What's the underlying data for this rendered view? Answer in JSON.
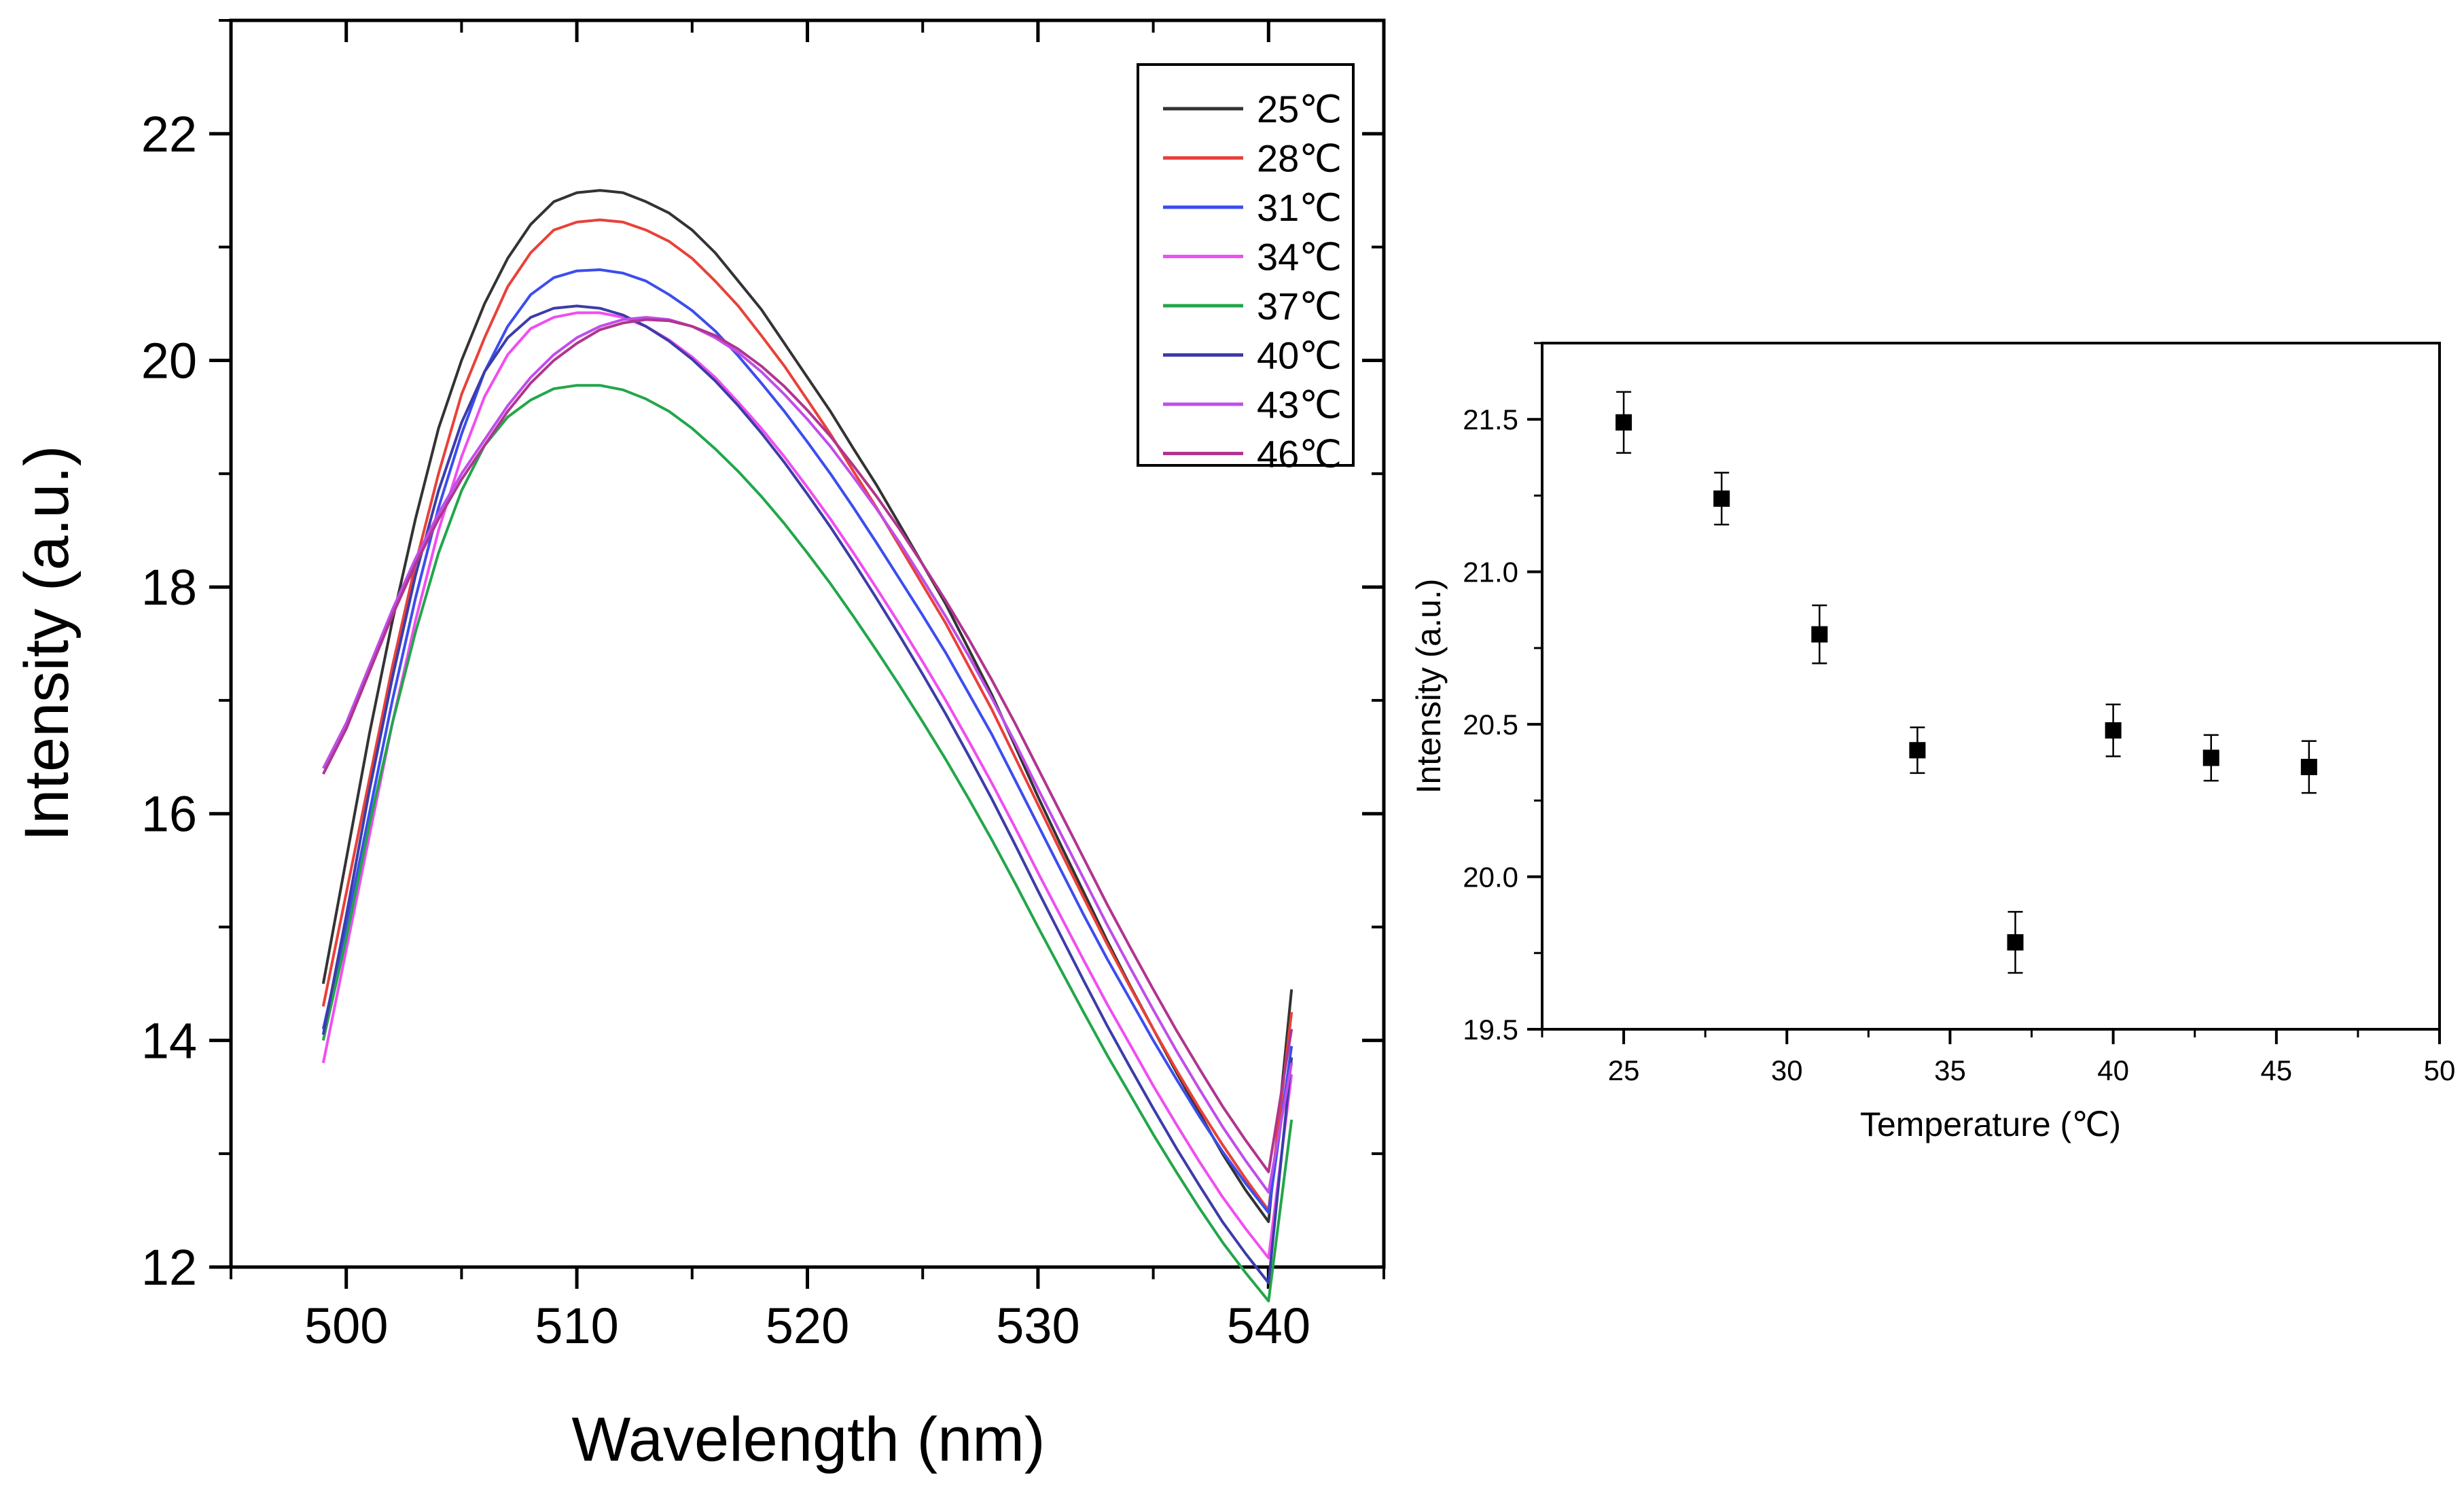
{
  "chart_data": [
    {
      "type": "line",
      "title": "",
      "xlabel": "Wavelength (nm)",
      "ylabel": "Intensity (a.u.)",
      "xlim": [
        495,
        545
      ],
      "ylim": [
        12,
        23
      ],
      "xticks": [
        500,
        510,
        520,
        530,
        540
      ],
      "yticks": [
        12,
        14,
        16,
        18,
        20,
        22
      ],
      "xtick_labels": [
        "500",
        "510",
        "520",
        "530",
        "540"
      ],
      "ytick_labels": [
        "12",
        "14",
        "16",
        "18",
        "20",
        "22"
      ],
      "grid": false,
      "legend_position": "top-right",
      "x": [
        499,
        500,
        501,
        502,
        503,
        504,
        505,
        506,
        507,
        508,
        509,
        510,
        511,
        512,
        513,
        514,
        515,
        516,
        517,
        518,
        519,
        520,
        521,
        522,
        523,
        524,
        525,
        526,
        527,
        528,
        529,
        530,
        531,
        532,
        533,
        534,
        535,
        536,
        537,
        538,
        539,
        540,
        541
      ],
      "series": [
        {
          "name": "25℃",
          "color": "#333333",
          "values": [
            14.5,
            15.6,
            16.7,
            17.7,
            18.6,
            19.4,
            20.0,
            20.5,
            20.9,
            21.2,
            21.4,
            21.48,
            21.5,
            21.48,
            21.4,
            21.3,
            21.15,
            20.95,
            20.7,
            20.45,
            20.15,
            19.85,
            19.55,
            19.22,
            18.9,
            18.55,
            18.2,
            17.85,
            17.45,
            17.05,
            16.6,
            16.15,
            15.72,
            15.3,
            14.88,
            14.48,
            14.1,
            13.72,
            13.36,
            13.0,
            12.68,
            12.4,
            14.45
          ]
        },
        {
          "name": "28℃",
          "color": "#e8413a",
          "values": [
            14.3,
            15.3,
            16.3,
            17.3,
            18.2,
            19.0,
            19.7,
            20.2,
            20.65,
            20.95,
            21.15,
            21.22,
            21.24,
            21.22,
            21.15,
            21.05,
            20.9,
            20.7,
            20.48,
            20.22,
            19.95,
            19.65,
            19.35,
            19.02,
            18.7,
            18.36,
            18.02,
            17.68,
            17.3,
            16.92,
            16.5,
            16.08,
            15.66,
            15.25,
            14.85,
            14.47,
            14.1,
            13.74,
            13.4,
            13.08,
            12.78,
            12.5,
            14.25
          ]
        },
        {
          "name": "31℃",
          "color": "#3c4dee",
          "values": [
            14.1,
            15.0,
            16.0,
            17.0,
            17.9,
            18.7,
            19.35,
            19.9,
            20.3,
            20.58,
            20.73,
            20.79,
            20.8,
            20.77,
            20.7,
            20.58,
            20.44,
            20.26,
            20.04,
            19.8,
            19.55,
            19.28,
            19.0,
            18.7,
            18.39,
            18.07,
            17.75,
            17.42,
            17.06,
            16.7,
            16.3,
            15.9,
            15.5,
            15.1,
            14.72,
            14.36,
            14.0,
            13.66,
            13.33,
            13.02,
            12.74,
            12.48,
            13.95
          ]
        },
        {
          "name": "34℃",
          "color": "#f04ef0",
          "values": [
            13.8,
            14.8,
            15.8,
            16.8,
            17.7,
            18.5,
            19.15,
            19.68,
            20.05,
            20.28,
            20.38,
            20.42,
            20.42,
            20.38,
            20.3,
            20.18,
            20.03,
            19.85,
            19.63,
            19.4,
            19.15,
            18.88,
            18.6,
            18.3,
            17.99,
            17.67,
            17.34,
            17.0,
            16.64,
            16.27,
            15.88,
            15.48,
            15.09,
            14.7,
            14.32,
            13.96,
            13.6,
            13.26,
            12.93,
            12.62,
            12.34,
            12.08,
            13.7
          ]
        },
        {
          "name": "37℃",
          "color": "#22a64a",
          "values": [
            14.0,
            14.9,
            15.9,
            16.8,
            17.6,
            18.3,
            18.85,
            19.25,
            19.5,
            19.65,
            19.75,
            19.78,
            19.78,
            19.74,
            19.66,
            19.55,
            19.4,
            19.22,
            19.02,
            18.8,
            18.56,
            18.3,
            18.03,
            17.74,
            17.44,
            17.13,
            16.81,
            16.48,
            16.13,
            15.77,
            15.39,
            15.0,
            14.62,
            14.24,
            13.87,
            13.52,
            13.17,
            12.84,
            12.52,
            12.22,
            11.95,
            11.7,
            13.3
          ]
        },
        {
          "name": "40℃",
          "color": "#3c3ca8",
          "values": [
            14.05,
            15.1,
            16.2,
            17.2,
            18.1,
            18.85,
            19.45,
            19.9,
            20.2,
            20.38,
            20.46,
            20.48,
            20.46,
            20.4,
            20.3,
            20.17,
            20.01,
            19.82,
            19.6,
            19.36,
            19.1,
            18.82,
            18.53,
            18.22,
            17.9,
            17.57,
            17.23,
            16.88,
            16.51,
            16.13,
            15.73,
            15.32,
            14.92,
            14.52,
            14.13,
            13.76,
            13.4,
            13.05,
            12.72,
            12.4,
            12.12,
            11.86,
            13.85
          ]
        },
        {
          "name": "43℃",
          "color": "#c04ee8",
          "values": [
            16.4,
            16.8,
            17.3,
            17.8,
            18.25,
            18.65,
            19.0,
            19.3,
            19.6,
            19.85,
            20.05,
            20.2,
            20.3,
            20.36,
            20.38,
            20.36,
            20.3,
            20.2,
            20.07,
            19.9,
            19.7,
            19.48,
            19.24,
            18.97,
            18.69,
            18.39,
            18.07,
            17.74,
            17.39,
            17.02,
            16.63,
            16.22,
            15.82,
            15.42,
            15.02,
            14.64,
            14.27,
            13.91,
            13.57,
            13.24,
            12.94,
            12.66,
            13.8
          ]
        },
        {
          "name": "46℃",
          "color": "#b0358f",
          "values": [
            16.35,
            16.75,
            17.25,
            17.75,
            18.2,
            18.6,
            18.95,
            19.25,
            19.55,
            19.8,
            20.0,
            20.15,
            20.27,
            20.33,
            20.36,
            20.35,
            20.3,
            20.22,
            20.1,
            19.95,
            19.77,
            19.56,
            19.33,
            19.07,
            18.8,
            18.51,
            18.2,
            17.88,
            17.54,
            17.18,
            16.8,
            16.4,
            16.0,
            15.6,
            15.2,
            14.82,
            14.45,
            14.09,
            13.75,
            13.42,
            13.12,
            12.84,
            14.1
          ]
        }
      ]
    },
    {
      "type": "scatter",
      "title": "",
      "xlabel": "Temperature (℃)",
      "ylabel": "Intensity (a.u.)",
      "xlim": [
        22.5,
        50
      ],
      "ylim": [
        19.5,
        21.75
      ],
      "xticks": [
        25,
        30,
        35,
        40,
        45,
        50
      ],
      "yticks": [
        19.5,
        20.0,
        20.5,
        21.0,
        21.5
      ],
      "xtick_labels": [
        "25",
        "30",
        "35",
        "40",
        "45",
        "50"
      ],
      "ytick_labels": [
        "19.5",
        "20.0",
        "20.5",
        "21.0",
        "21.5"
      ],
      "grid": false,
      "points": [
        {
          "x": 25,
          "y": 21.49,
          "err": 0.1
        },
        {
          "x": 28,
          "y": 21.24,
          "err": 0.085
        },
        {
          "x": 31,
          "y": 20.795,
          "err": 0.095
        },
        {
          "x": 34,
          "y": 20.415,
          "err": 0.075
        },
        {
          "x": 37,
          "y": 19.785,
          "err": 0.1
        },
        {
          "x": 40,
          "y": 20.48,
          "err": 0.085
        },
        {
          "x": 43,
          "y": 20.39,
          "err": 0.075
        },
        {
          "x": 46,
          "y": 20.36,
          "err": 0.085
        }
      ]
    }
  ]
}
